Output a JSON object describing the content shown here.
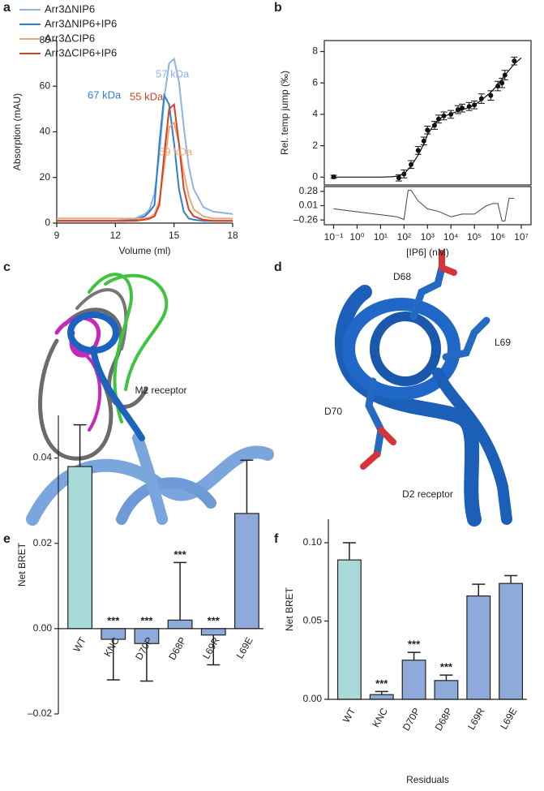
{
  "panels": [
    "a",
    "b",
    "c",
    "d",
    "e",
    "f"
  ],
  "structure_labels": [
    "D68",
    "L69",
    "D70"
  ],
  "chart_data": [
    {
      "type": "line",
      "xlabel": "Volume (ml)",
      "ylabel": "Absorption (mAU)",
      "x": [
        9,
        10,
        11,
        12,
        12.5,
        13,
        13.5,
        13.75,
        14,
        14.25,
        14.5,
        14.75,
        15,
        15.25,
        15.5,
        15.75,
        16,
        16.5,
        17,
        18
      ],
      "series": [
        {
          "name": "Arr3ΔNIP6",
          "color": "#92b2e2",
          "values": [
            1,
            1,
            1,
            1,
            1.5,
            2,
            4,
            6,
            13,
            30,
            55,
            70,
            72,
            62,
            42,
            25,
            15,
            7,
            5,
            4
          ]
        },
        {
          "name": "Arr3ΔNIP6+IP6",
          "color": "#2b7fd8",
          "values": [
            1,
            1,
            1,
            1,
            1,
            1.5,
            3,
            5,
            8,
            35,
            56,
            52,
            35,
            15,
            5,
            2,
            1.5,
            1,
            1,
            1
          ]
        },
        {
          "name": "Arr3ΔCIP6",
          "color": "#f0a574",
          "values": [
            2,
            2,
            2,
            2,
            2,
            2,
            2,
            2.5,
            4,
            10,
            25,
            42,
            44,
            35,
            22,
            12,
            6,
            3,
            2,
            2
          ]
        },
        {
          "name": "Arr3ΔCIP6+IP6",
          "color": "#d2431f",
          "values": [
            1,
            1,
            1,
            1,
            1,
            1,
            1.5,
            2,
            3,
            8,
            30,
            50,
            52,
            35,
            15,
            6,
            3,
            1.5,
            1,
            1
          ]
        }
      ],
      "annotations": [
        {
          "text": "57 kDa",
          "color": "#92b2e2"
        },
        {
          "text": "67 kDa",
          "color": "#2b7fd8"
        },
        {
          "text": "55 kDa",
          "color": "#d2431f"
        },
        {
          "text": "59 kDa",
          "color": "#f0a574"
        }
      ],
      "xlim": [
        9,
        18
      ],
      "xticks": [
        9,
        12,
        15,
        18
      ],
      "ylim": [
        0,
        80
      ],
      "yticks": [
        0,
        20,
        40,
        60,
        80
      ]
    },
    {
      "type": "scatter",
      "ylabel": "Rel. temp jump (‰)",
      "xscale": "log",
      "xlim": [
        0.04,
        26000000
      ],
      "ylim": [
        -0.5,
        8.7
      ],
      "yticks": [
        0,
        2,
        4,
        6,
        8
      ],
      "series": [
        {
          "type": "scatter",
          "color": "#111",
          "x": [
            0.1,
            60,
            100,
            200,
            400,
            700,
            1000,
            2000,
            3000,
            5000,
            10000,
            20000,
            30000,
            60000,
            100000,
            200000,
            500000,
            1000000,
            1500000,
            2000000,
            5000000
          ],
          "values": [
            0.02,
            -0.05,
            0.2,
            0.8,
            1.7,
            2.3,
            3.0,
            3.3,
            3.7,
            3.9,
            4.0,
            4.3,
            4.4,
            4.5,
            4.6,
            5.0,
            5.2,
            5.8,
            6.0,
            6.5,
            7.4
          ],
          "errors": [
            0.1,
            0.2,
            0.25,
            0.25,
            0.25,
            0.25,
            0.25,
            0.25,
            0.25,
            0.25,
            0.25,
            0.25,
            0.25,
            0.25,
            0.25,
            0.3,
            0.3,
            0.3,
            0.3,
            0.3,
            0.25
          ]
        },
        {
          "type": "line",
          "color": "#111",
          "x": [
            0.1,
            1,
            10,
            30,
            60,
            100,
            200,
            400,
            700,
            1000,
            2000,
            4000,
            7000,
            10000,
            20000,
            50000,
            100000,
            200000,
            500000,
            1000000,
            2000000,
            5000000,
            10000000
          ],
          "values": [
            0,
            0,
            0,
            0.02,
            0.08,
            0.2,
            0.7,
            1.4,
            2.1,
            2.7,
            3.4,
            3.8,
            3.95,
            4.05,
            4.2,
            4.4,
            4.6,
            4.9,
            5.4,
            5.9,
            6.5,
            7.2,
            7.6
          ]
        }
      ]
    },
    {
      "type": "line",
      "xlabel": "[IP6] (nM)",
      "xscale": "log",
      "xlim": [
        0.04,
        26000000
      ],
      "xticks": [
        {
          "value": 0.1,
          "label": "10⁻¹"
        },
        {
          "value": 1,
          "label": "10⁰"
        },
        {
          "value": 10,
          "label": "10¹"
        },
        {
          "value": 100,
          "label": "10²"
        },
        {
          "value": 1000,
          "label": "10³"
        },
        {
          "value": 10000,
          "label": "10⁴"
        },
        {
          "value": 100000,
          "label": "10⁵"
        },
        {
          "value": 1000000,
          "label": "10⁶"
        },
        {
          "value": 10000000,
          "label": "10⁷"
        }
      ],
      "ylim": [
        -0.35,
        0.37
      ],
      "yticks": [
        0.28,
        0.01,
        {
          "value": -0.26,
          "label": "–0.26"
        }
      ],
      "x": [
        0.1,
        50,
        100,
        150,
        200,
        400,
        1000,
        3000,
        10000,
        30000,
        100000,
        300000,
        600000,
        1000000,
        1500000,
        2000000,
        3000000,
        5000000
      ],
      "series": [
        {
          "color": "#444",
          "values": [
            -0.05,
            -0.2,
            -0.25,
            0.3,
            0.3,
            0.1,
            -0.05,
            -0.1,
            -0.2,
            -0.15,
            -0.15,
            0,
            0.05,
            0.05,
            -0.28,
            -0.28,
            0.15,
            0.15
          ]
        }
      ]
    },
    {
      "type": "bar",
      "title": "M2 receptor",
      "ylabel": "Net BRET",
      "categories": [
        "WT",
        "KNC",
        "D70P",
        "D68P",
        "L69R",
        "L69E"
      ],
      "values": [
        0.038,
        -0.0025,
        -0.0035,
        0.002,
        -0.0015,
        0.027
      ],
      "errors": [
        0.0098,
        0.0095,
        0.0088,
        0.0135,
        0.007,
        0.0125
      ],
      "significance": [
        null,
        "***",
        "***",
        "***",
        "***",
        null
      ],
      "colors": [
        "#a9dada",
        "#8eaadb",
        "#8eaadb",
        "#8eaadb",
        "#8eaadb",
        "#8eaadb"
      ],
      "ylim": [
        -0.02,
        0.05
      ],
      "yticks": [
        {
          "value": -0.02,
          "label": "–0.02"
        },
        {
          "value": 0,
          "label": "0.00"
        },
        0.02,
        0.04
      ]
    },
    {
      "type": "bar",
      "title": "D2 receptor",
      "ylabel": "Net BRET",
      "xlabel": "Residuals",
      "categories": [
        "WT",
        "KNC",
        "D70P",
        "D68P",
        "L69R",
        "L69E"
      ],
      "values": [
        0.089,
        0.003,
        0.025,
        0.012,
        0.066,
        0.074
      ],
      "errors": [
        0.011,
        0.002,
        0.005,
        0.0035,
        0.0075,
        0.005
      ],
      "significance": [
        null,
        "***",
        "***",
        "***",
        null,
        null
      ],
      "colors": [
        "#a9dada",
        "#8eaadb",
        "#8eaadb",
        "#8eaadb",
        "#8eaadb",
        "#8eaadb"
      ],
      "ylim": [
        0,
        0.115
      ],
      "yticks": [
        {
          "value": 0,
          "label": "0.00"
        },
        0.05,
        {
          "value": 0.1,
          "label": "0.10"
        }
      ]
    }
  ]
}
